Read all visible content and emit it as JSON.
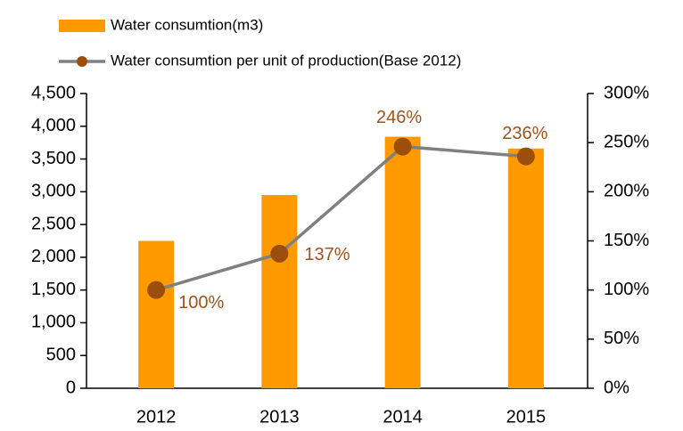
{
  "chart_data": {
    "type": "bar",
    "categories": [
      "2012",
      "2013",
      "2014",
      "2015"
    ],
    "series": [
      {
        "name": "Water consumtion(m3)",
        "color": "#FF9900",
        "values": [
          2250,
          2950,
          3840,
          3660
        ]
      },
      {
        "name": "Water consumtion per unit of production(Base 2012)",
        "type": "line",
        "axis": "y2",
        "color": "#808080",
        "marker_color": "#9C4F0C",
        "values": [
          100,
          137,
          246,
          236
        ],
        "value_labels": [
          "100%",
          "137%",
          "246%",
          "236%"
        ]
      }
    ],
    "ylim": [
      0,
      4500
    ],
    "yticks": [
      0,
      500,
      {
        "value": 1000,
        "label": "1,000"
      },
      {
        "value": 1500,
        "label": "1,500"
      },
      {
        "value": 2000,
        "label": "2,000"
      },
      {
        "value": 2500,
        "label": "2,500"
      },
      {
        "value": 3000,
        "label": "3,000"
      },
      {
        "value": 3500,
        "label": "3,500"
      },
      {
        "value": 4000,
        "label": "4,000"
      },
      {
        "value": 4500,
        "label": "4,500"
      }
    ],
    "y2lim": [
      0,
      300
    ],
    "y2ticks": [
      {
        "value": 0,
        "label": "0%"
      },
      {
        "value": 50,
        "label": "50%"
      },
      {
        "value": 100,
        "label": "100%"
      },
      {
        "value": 150,
        "label": "150%"
      },
      {
        "value": 200,
        "label": "200%"
      },
      {
        "value": 250,
        "label": "250%"
      },
      {
        "value": 300,
        "label": "300%"
      }
    ],
    "legend": "top-left"
  }
}
